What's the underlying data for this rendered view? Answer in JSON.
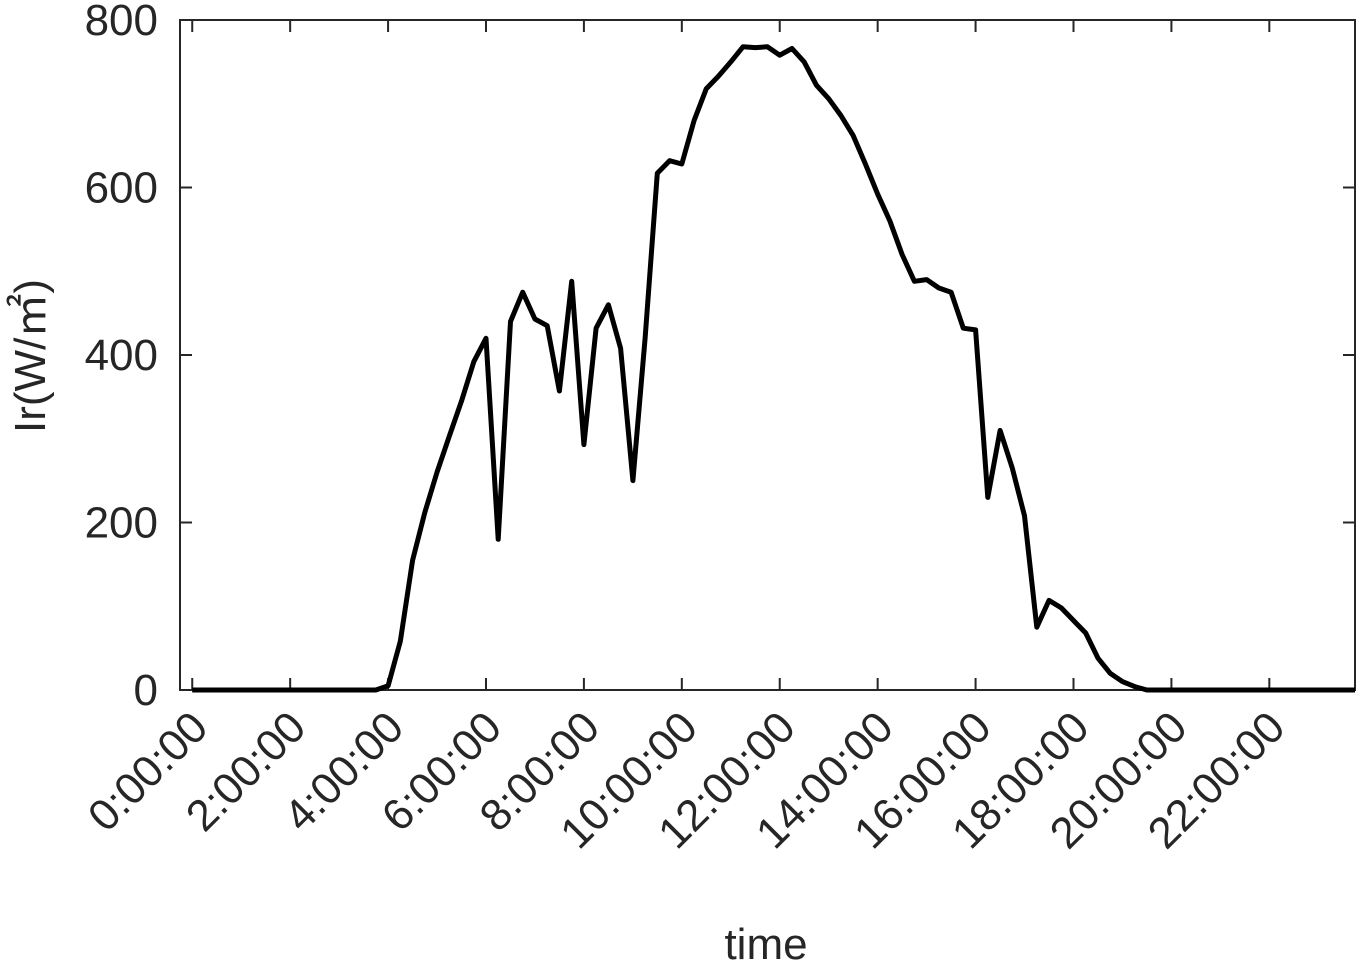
{
  "chart_data": {
    "type": "line",
    "xlabel": "time",
    "ylabel": "Ir(W/㎡)",
    "ylim": [
      0,
      800
    ],
    "yticks": [
      0,
      200,
      400,
      600,
      800
    ],
    "xlim_hours": [
      -0.25,
      23.75
    ],
    "xticks": [
      {
        "label": "0:00:00",
        "hour": 0
      },
      {
        "label": "2:00:00",
        "hour": 2
      },
      {
        "label": "4:00:00",
        "hour": 4
      },
      {
        "label": "6:00:00",
        "hour": 6
      },
      {
        "label": "8:00:00",
        "hour": 8
      },
      {
        "label": "10:00:00",
        "hour": 10
      },
      {
        "label": "12:00:00",
        "hour": 12
      },
      {
        "label": "14:00:00",
        "hour": 14
      },
      {
        "label": "16:00:00",
        "hour": 16
      },
      {
        "label": "18:00:00",
        "hour": 18
      },
      {
        "label": "20:00:00",
        "hour": 20
      },
      {
        "label": "22:00:00",
        "hour": 22
      }
    ],
    "grid": false,
    "line_color": "#000000",
    "axis_color": "#262626",
    "series": [
      {
        "x": [
          0,
          0.25,
          0.5,
          0.75,
          1,
          1.25,
          1.5,
          1.75,
          2,
          2.25,
          2.5,
          2.75,
          3,
          3.25,
          3.5,
          3.75,
          4,
          4.25,
          4.5,
          4.75,
          5,
          5.25,
          5.5,
          5.75,
          6,
          6.25,
          6.5,
          6.75,
          7,
          7.25,
          7.5,
          7.75,
          8,
          8.25,
          8.5,
          8.75,
          9,
          9.25,
          9.5,
          9.75,
          10,
          10.25,
          10.5,
          10.75,
          11,
          11.25,
          11.5,
          11.75,
          12,
          12.25,
          12.5,
          12.75,
          13,
          13.25,
          13.5,
          13.75,
          14,
          14.25,
          14.5,
          14.75,
          15,
          15.25,
          15.5,
          15.75,
          16,
          16.25,
          16.5,
          16.75,
          17,
          17.25,
          17.5,
          17.75,
          18,
          18.25,
          18.5,
          18.75,
          19,
          19.25,
          19.5,
          19.75,
          20,
          20.25,
          20.5,
          20.75,
          21,
          21.25,
          21.5,
          21.75,
          22,
          22.25,
          22.5,
          22.75,
          23,
          23.25,
          23.5,
          23.75
        ],
        "values": [
          0,
          0,
          0,
          0,
          0,
          0,
          0,
          0,
          0,
          0,
          0,
          0,
          0,
          0,
          0,
          0,
          5,
          58,
          155,
          212,
          260,
          303,
          345,
          392,
          420,
          180,
          440,
          475,
          443,
          435,
          357,
          488,
          293,
          432,
          460,
          408,
          250,
          420,
          617,
          632,
          628,
          680,
          718,
          733,
          750,
          768,
          767,
          768,
          758,
          766,
          750,
          722,
          706,
          686,
          662,
          628,
          592,
          560,
          520,
          488,
          490,
          480,
          475,
          432,
          430,
          230,
          310,
          265,
          208,
          75,
          107,
          98,
          83,
          68,
          38,
          20,
          10,
          4,
          0,
          0,
          0,
          0,
          0,
          0,
          0,
          0,
          0,
          0,
          0,
          0,
          0,
          0,
          0,
          0,
          0,
          0
        ]
      }
    ]
  }
}
